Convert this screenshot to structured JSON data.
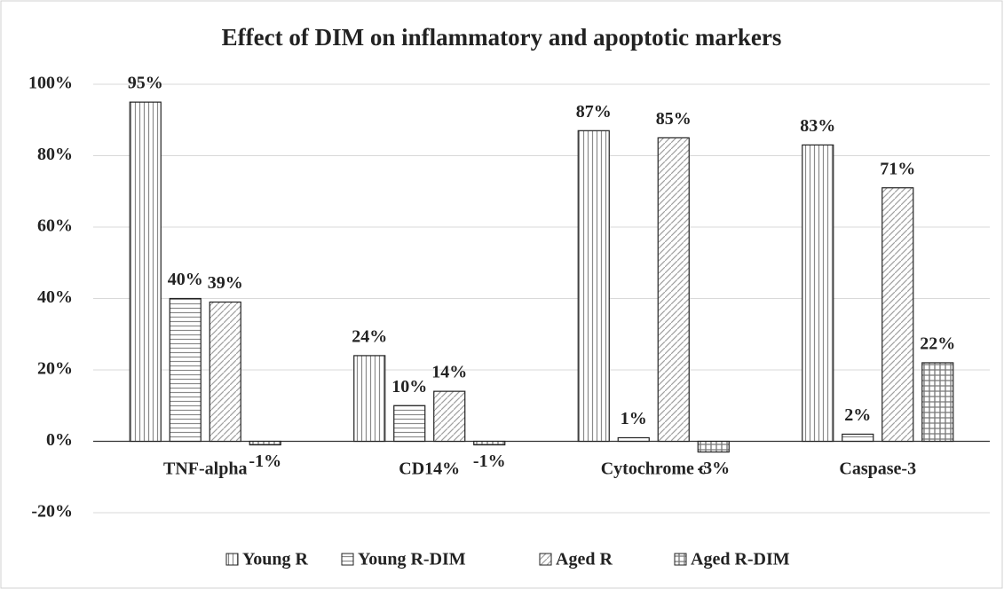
{
  "chart_data": {
    "type": "bar",
    "title": "Effect of DIM on inflammatory and apoptotic markers",
    "categories": [
      "TNF-alpha",
      "CD14%",
      "Cytochrome c",
      "Caspase-3"
    ],
    "series": [
      {
        "name": "Young R",
        "color": "#7f7f7f",
        "pattern": "vertical",
        "values": [
          95,
          24,
          87,
          83
        ],
        "value_labels": [
          "95%",
          "24%",
          "87%",
          "83%"
        ]
      },
      {
        "name": "Young R-DIM",
        "color": "#7f7f7f",
        "pattern": "horizontal",
        "values": [
          40,
          10,
          1,
          2
        ],
        "value_labels": [
          "40%",
          "10%",
          "1%",
          "2%"
        ]
      },
      {
        "name": "Aged R",
        "color": "#7f7f7f",
        "pattern": "diagonal",
        "values": [
          39,
          14,
          85,
          71
        ],
        "value_labels": [
          "39%",
          "14%",
          "85%",
          "71%"
        ]
      },
      {
        "name": "Aged R-DIM",
        "color": "#7f7f7f",
        "pattern": "grid",
        "values": [
          -1,
          -1,
          -3,
          22
        ],
        "value_labels": [
          "-1%",
          "-1%",
          "-3%",
          "22%"
        ]
      }
    ],
    "ylim": [
      -20,
      100
    ],
    "yticks": [
      {
        "value": -20,
        "label": "-20%"
      },
      {
        "value": 0,
        "label": "0%"
      },
      {
        "value": 20,
        "label": "20%"
      },
      {
        "value": 40,
        "label": "40%"
      },
      {
        "value": 60,
        "label": "60%"
      },
      {
        "value": 80,
        "label": "80%"
      },
      {
        "value": 100,
        "label": "100%"
      }
    ],
    "grid": true,
    "legend": "bottom"
  }
}
